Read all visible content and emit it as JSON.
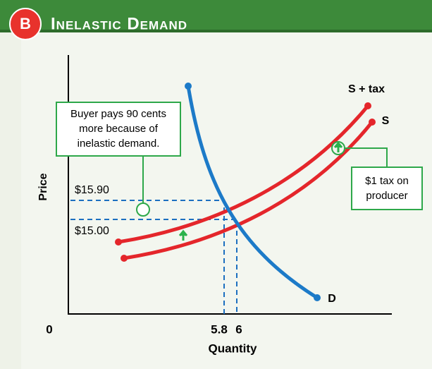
{
  "header": {
    "badge": "B",
    "title": "Inelastic Demand"
  },
  "axes": {
    "y_label": "Price",
    "x_label": "Quantity",
    "origin": "0"
  },
  "price_labels": [
    "$15.90",
    "$15.00"
  ],
  "quantity_labels": [
    "5.8",
    "6"
  ],
  "curves": {
    "supply_tax": "S + tax",
    "supply": "S",
    "demand": "D"
  },
  "callouts": {
    "buyer": [
      "Buyer pays 90 cents",
      "more because of",
      "inelastic demand."
    ],
    "tax": [
      "$1 tax on",
      "producer"
    ]
  }
}
